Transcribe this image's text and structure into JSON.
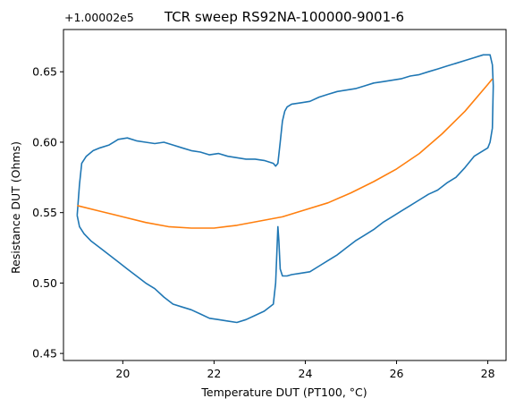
{
  "chart_data": {
    "type": "line",
    "title": "TCR sweep RS92NA-100000-9001-6",
    "xlabel": "Temperature DUT (PT100, °C)",
    "ylabel": "Resistance DUT (Ohms)",
    "offset_text": "+1.00002e5",
    "xlim": [
      18.7,
      28.4
    ],
    "ylim": [
      0.445,
      0.68
    ],
    "x_ticks": [
      20,
      22,
      24,
      26,
      28
    ],
    "x_tick_labels": [
      "20",
      "22",
      "24",
      "26",
      "28"
    ],
    "y_ticks": [
      0.45,
      0.5,
      0.55,
      0.6,
      0.65
    ],
    "y_tick_labels": [
      "0.45",
      "0.50",
      "0.55",
      "0.60",
      "0.65"
    ],
    "grid": false,
    "series": [
      {
        "color": "#1f77b4",
        "x": [
          19.0,
          19.05,
          19.1,
          19.2,
          19.35,
          19.5,
          19.7,
          19.9,
          20.1,
          20.3,
          20.5,
          20.7,
          20.9,
          21.1,
          21.3,
          21.5,
          21.7,
          21.9,
          22.1,
          22.3,
          22.5,
          22.7,
          22.9,
          23.1,
          23.3,
          23.35,
          23.4,
          23.45,
          23.5,
          23.55,
          23.6,
          23.7,
          23.9,
          24.1,
          24.3,
          24.5,
          24.7,
          24.9,
          25.1,
          25.3,
          25.5,
          25.7,
          25.9,
          26.1,
          26.3,
          26.5,
          26.7,
          26.9,
          27.1,
          27.3,
          27.5,
          27.7,
          27.9,
          28.05,
          28.1,
          28.12,
          28.1,
          28.05,
          28.0,
          27.9,
          27.7,
          27.5,
          27.3,
          27.1,
          26.9,
          26.7,
          26.5,
          26.3,
          26.1,
          25.9,
          25.7,
          25.5,
          25.3,
          25.1,
          24.9,
          24.7,
          24.5,
          24.3,
          24.1,
          23.9,
          23.7,
          23.6,
          23.5,
          23.45,
          23.42,
          23.4,
          23.35,
          23.3,
          23.1,
          22.9,
          22.7,
          22.5,
          22.3,
          22.1,
          21.9,
          21.7,
          21.5,
          21.3,
          21.1,
          20.9,
          20.7,
          20.5,
          20.3,
          20.1,
          19.9,
          19.7,
          19.5,
          19.3,
          19.15,
          19.05,
          19.0,
          19.0
        ],
        "values": [
          0.548,
          0.57,
          0.585,
          0.59,
          0.594,
          0.596,
          0.598,
          0.602,
          0.603,
          0.601,
          0.6,
          0.599,
          0.6,
          0.598,
          0.596,
          0.594,
          0.593,
          0.591,
          0.592,
          0.59,
          0.589,
          0.588,
          0.588,
          0.587,
          0.585,
          0.583,
          0.585,
          0.6,
          0.615,
          0.622,
          0.625,
          0.627,
          0.628,
          0.629,
          0.632,
          0.634,
          0.636,
          0.637,
          0.638,
          0.64,
          0.642,
          0.643,
          0.644,
          0.645,
          0.647,
          0.648,
          0.65,
          0.652,
          0.654,
          0.656,
          0.658,
          0.66,
          0.662,
          0.662,
          0.655,
          0.64,
          0.61,
          0.6,
          0.596,
          0.594,
          0.59,
          0.582,
          0.575,
          0.571,
          0.566,
          0.563,
          0.559,
          0.555,
          0.551,
          0.547,
          0.543,
          0.538,
          0.534,
          0.53,
          0.525,
          0.52,
          0.516,
          0.512,
          0.508,
          0.507,
          0.506,
          0.505,
          0.505,
          0.51,
          0.53,
          0.54,
          0.5,
          0.485,
          0.48,
          0.477,
          0.474,
          0.472,
          0.473,
          0.474,
          0.475,
          0.478,
          0.481,
          0.483,
          0.485,
          0.49,
          0.496,
          0.5,
          0.505,
          0.51,
          0.515,
          0.52,
          0.525,
          0.53,
          0.535,
          0.54,
          0.548,
          0.548
        ]
      },
      {
        "color": "#ff7f0e",
        "x": [
          19.0,
          19.5,
          20.0,
          20.5,
          21.0,
          21.5,
          22.0,
          22.5,
          23.0,
          23.5,
          24.0,
          24.5,
          25.0,
          25.5,
          26.0,
          26.5,
          27.0,
          27.5,
          28.0,
          28.1
        ],
        "values": [
          0.555,
          0.551,
          0.547,
          0.543,
          0.54,
          0.539,
          0.539,
          0.541,
          0.544,
          0.547,
          0.552,
          0.557,
          0.564,
          0.572,
          0.581,
          0.592,
          0.606,
          0.622,
          0.641,
          0.645
        ]
      }
    ]
  }
}
